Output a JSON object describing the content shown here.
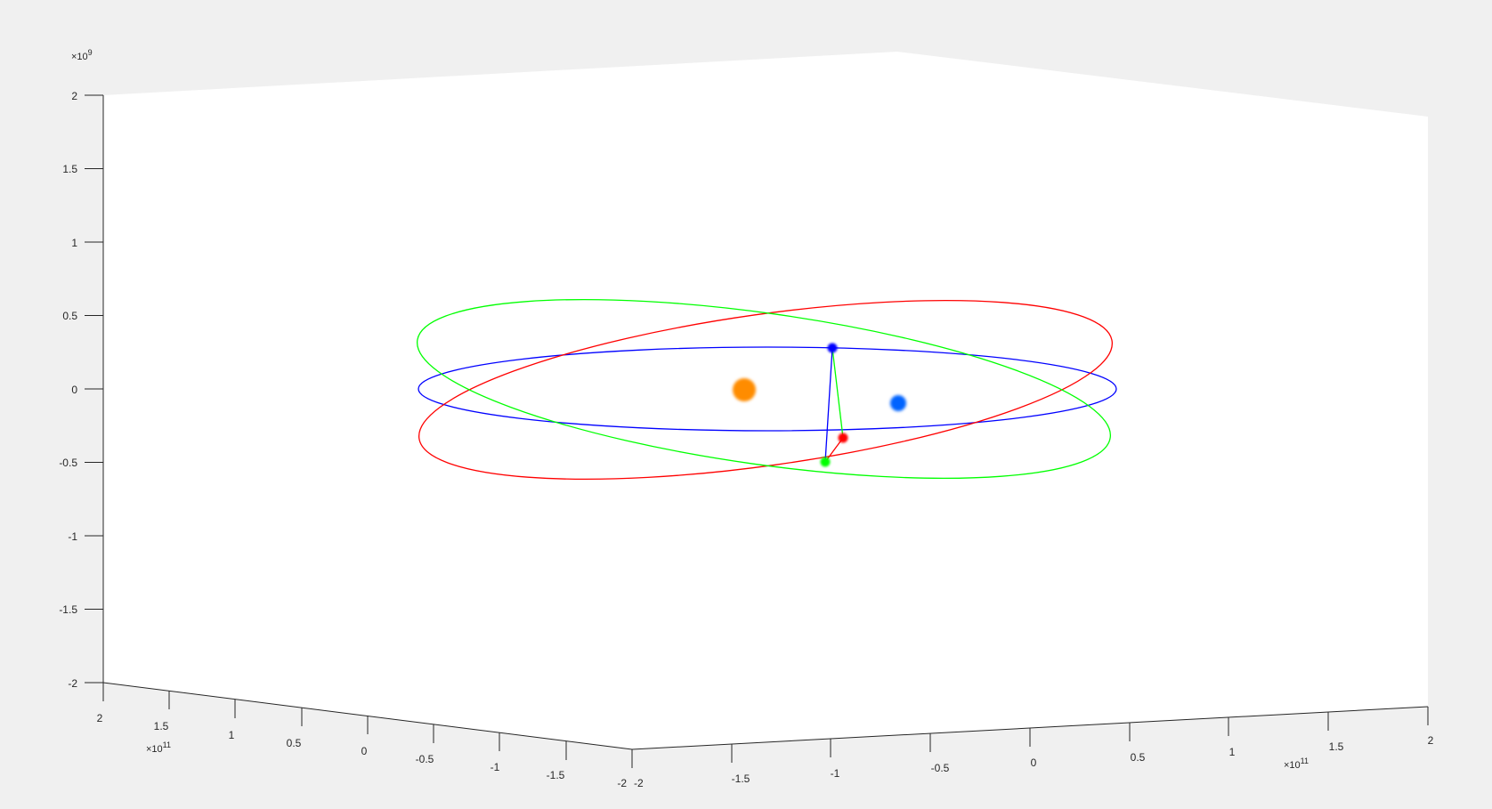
{
  "chart_data": {
    "type": "line",
    "dimensions": 3,
    "view": "3-D perspective box, grey figure background, white axes faces",
    "grid": false,
    "legend": "none",
    "z_axis": {
      "range": [
        -2,
        2
      ],
      "tick_labels": [
        "-2",
        "-1.5",
        "-1",
        "-0.5",
        "0",
        "0.5",
        "1",
        "1.5",
        "2"
      ],
      "exponent_label": "×10",
      "exponent_power": "9"
    },
    "left_axis": {
      "range": [
        -2,
        2
      ],
      "tick_labels": [
        "2",
        "1.5",
        "1",
        "0.5",
        "0",
        "-0.5",
        "-1",
        "-1.5",
        "-2"
      ],
      "exponent_label": "×10",
      "exponent_power": "11"
    },
    "right_axis": {
      "range": [
        -2,
        2
      ],
      "tick_labels": [
        "-2",
        "-1.5",
        "-1",
        "-0.5",
        "0",
        "0.5",
        "1",
        "1.5",
        "2"
      ],
      "exponent_label": "×10",
      "exponent_power": "11"
    },
    "series": [
      {
        "color": "#0000ff",
        "kind": "ellipse",
        "center": [
          0.22,
          0.25
        ],
        "semi_axes": [
          1.7,
          0.5
        ],
        "tilt_deg": 0
      },
      {
        "color": "#ff0000",
        "kind": "ellipse",
        "center": [
          0.22,
          0.27
        ],
        "semi_axes": [
          1.7,
          0.5
        ],
        "tilt_deg": 8
      },
      {
        "color": "#00ff00",
        "kind": "ellipse",
        "center": [
          0.21,
          0.24
        ],
        "semi_axes": [
          1.7,
          0.5
        ],
        "tilt_deg": -8
      }
    ],
    "triangle": {
      "points": [
        {
          "color": "#0000ff",
          "value": [
            0.45,
            -0.3,
            0.2
          ]
        },
        {
          "color": "#ff0000",
          "value": [
            0.55,
            -0.32,
            -0.42
          ]
        },
        {
          "color": "#00ff00",
          "value": [
            0.6,
            -0.18,
            -0.6
          ]
        }
      ],
      "edges": [
        {
          "from": 0,
          "to": 2,
          "color": "#0000ff"
        },
        {
          "from": 0,
          "to": 1,
          "color": "#00ff00"
        },
        {
          "from": 2,
          "to": 1,
          "color": "#ff0000"
        }
      ]
    },
    "bodies": [
      {
        "name": "sun",
        "color": "#ff8c00",
        "value": [
          0,
          0,
          -0.1
        ]
      },
      {
        "name": "earth",
        "color": "#0064ff",
        "value": [
          0.65,
          0.7,
          -0.2
        ]
      }
    ]
  }
}
